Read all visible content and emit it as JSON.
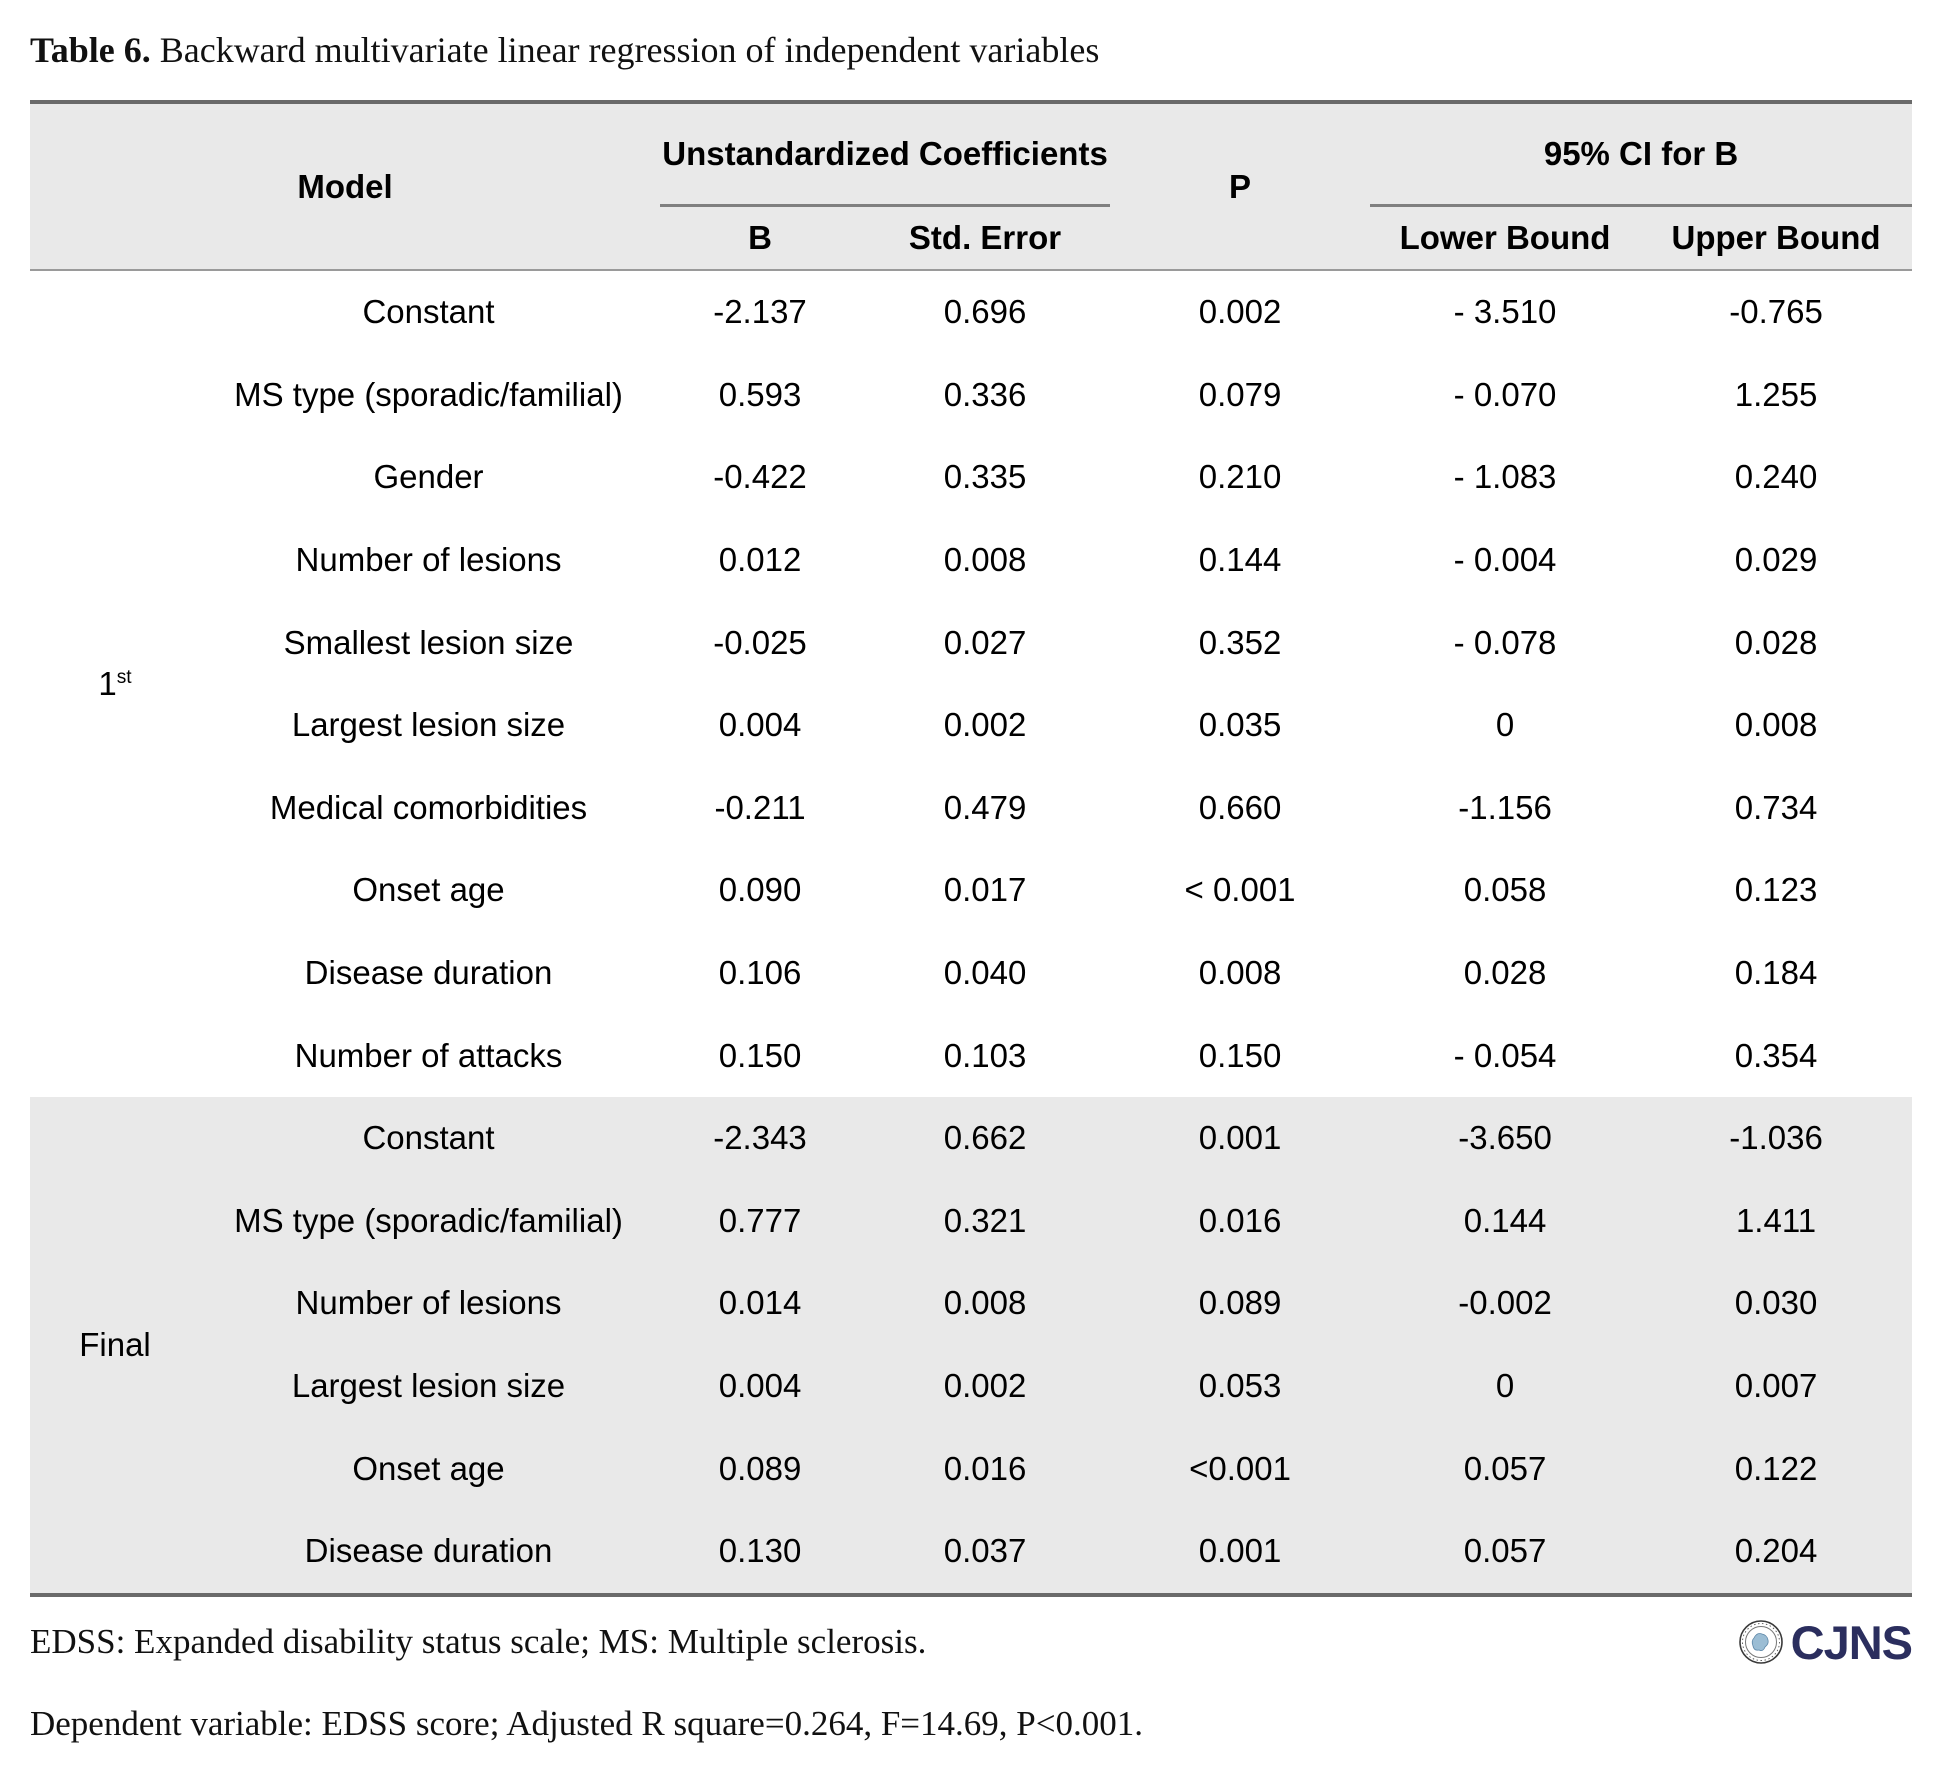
{
  "page": {
    "title_label": "Table 6.",
    "title_text": "Backward multivariate linear regression of independent variables"
  },
  "table": {
    "header": {
      "model": "Model",
      "unstandardized": "Unstandardized Coefficients",
      "b": "B",
      "std_error": "Std. Error",
      "p": "P",
      "ci": "95% CI for B",
      "lower": "Lower Bound",
      "upper": "Upper Bound"
    },
    "sections": [
      {
        "model": "1",
        "model_sup": "st",
        "rows": [
          {
            "variable": "Constant",
            "b": "-2.137",
            "se": "0.696",
            "p": "0.002",
            "lower": "- 3.510",
            "upper": "-0.765"
          },
          {
            "variable": "MS type (sporadic/familial)",
            "b": "0.593",
            "se": "0.336",
            "p": "0.079",
            "lower": "- 0.070",
            "upper": "1.255"
          },
          {
            "variable": "Gender",
            "b": "-0.422",
            "se": "0.335",
            "p": "0.210",
            "lower": "- 1.083",
            "upper": "0.240"
          },
          {
            "variable": "Number of lesions",
            "b": "0.012",
            "se": "0.008",
            "p": "0.144",
            "lower": "- 0.004",
            "upper": "0.029"
          },
          {
            "variable": "Smallest lesion size",
            "b": "-0.025",
            "se": "0.027",
            "p": "0.352",
            "lower": "- 0.078",
            "upper": "0.028"
          },
          {
            "variable": "Largest lesion size",
            "b": "0.004",
            "se": "0.002",
            "p": "0.035",
            "lower": "0",
            "upper": "0.008"
          },
          {
            "variable": "Medical comorbidities",
            "b": "-0.211",
            "se": "0.479",
            "p": "0.660",
            "lower": "-1.156",
            "upper": "0.734"
          },
          {
            "variable": "Onset age",
            "b": "0.090",
            "se": "0.017",
            "p": "< 0.001",
            "lower": "0.058",
            "upper": "0.123"
          },
          {
            "variable": "Disease duration",
            "b": "0.106",
            "se": "0.040",
            "p": "0.008",
            "lower": "0.028",
            "upper": "0.184"
          },
          {
            "variable": "Number of attacks",
            "b": "0.150",
            "se": "0.103",
            "p": "0.150",
            "lower": "- 0.054",
            "upper": "0.354"
          }
        ]
      },
      {
        "model": "Final",
        "model_sup": "",
        "rows": [
          {
            "variable": "Constant",
            "b": "-2.343",
            "se": "0.662",
            "p": "0.001",
            "lower": "-3.650",
            "upper": "-1.036"
          },
          {
            "variable": "MS type (sporadic/familial)",
            "b": "0.777",
            "se": "0.321",
            "p": "0.016",
            "lower": "0.144",
            "upper": "1.411"
          },
          {
            "variable": "Number of lesions",
            "b": "0.014",
            "se": "0.008",
            "p": "0.089",
            "lower": "-0.002",
            "upper": "0.030"
          },
          {
            "variable": "Largest lesion size",
            "b": "0.004",
            "se": "0.002",
            "p": "0.053",
            "lower": "0",
            "upper": "0.007"
          },
          {
            "variable": "Onset age",
            "b": "0.089",
            "se": "0.016",
            "p": "<0.001",
            "lower": "0.057",
            "upper": "0.122"
          },
          {
            "variable": "Disease duration",
            "b": "0.130",
            "se": "0.037",
            "p": "0.001",
            "lower": "0.057",
            "upper": "0.204"
          }
        ]
      }
    ]
  },
  "footnotes": {
    "abbreviations": "EDSS: Expanded disability status scale; MS: Multiple sclerosis.",
    "model_stats": "Dependent variable: EDSS score; Adjusted R square=0.264, F=14.69, P<0.001."
  },
  "logo": {
    "name": "CJNS"
  },
  "colors": {
    "header_bg": "#e9e9e9",
    "section_bg": "#e9e9e9",
    "border_dark": "#6a6a6a",
    "border_light": "#9a9a9a",
    "group_underline": "#808080",
    "logo_navy": "#2b2e5e",
    "logo_blue": "#9bbdd4"
  }
}
